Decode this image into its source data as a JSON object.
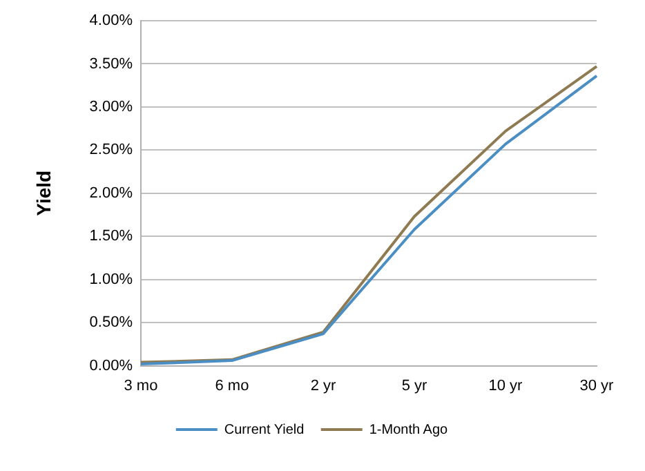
{
  "chart_data": {
    "type": "line",
    "ylabel": "Yield",
    "categories": [
      "3 mo",
      "6 mo",
      "2 yr",
      "5 yr",
      "10 yr",
      "30 yr"
    ],
    "series": [
      {
        "name": "Current Yield",
        "color": "#4a8ec4",
        "values": [
          0.02,
          0.06,
          0.37,
          1.58,
          2.57,
          3.36
        ]
      },
      {
        "name": "1-Month Ago",
        "color": "#8f7b52",
        "values": [
          0.04,
          0.07,
          0.39,
          1.73,
          2.72,
          3.47
        ]
      }
    ],
    "ylim": [
      0,
      4
    ],
    "yticks": [
      {
        "value": 0,
        "label": "0.00%"
      },
      {
        "value": 0.5,
        "label": "0.50%"
      },
      {
        "value": 1,
        "label": "1.00%"
      },
      {
        "value": 1.5,
        "label": "1.50%"
      },
      {
        "value": 2,
        "label": "2.00%"
      },
      {
        "value": 2.5,
        "label": "2.50%"
      },
      {
        "value": 3,
        "label": "3.00%"
      },
      {
        "value": 3.5,
        "label": "3.50%"
      },
      {
        "value": 4,
        "label": "4.00%"
      }
    ],
    "grid": "y",
    "legend": "bottom",
    "marker": "none",
    "line_style": "solid"
  }
}
